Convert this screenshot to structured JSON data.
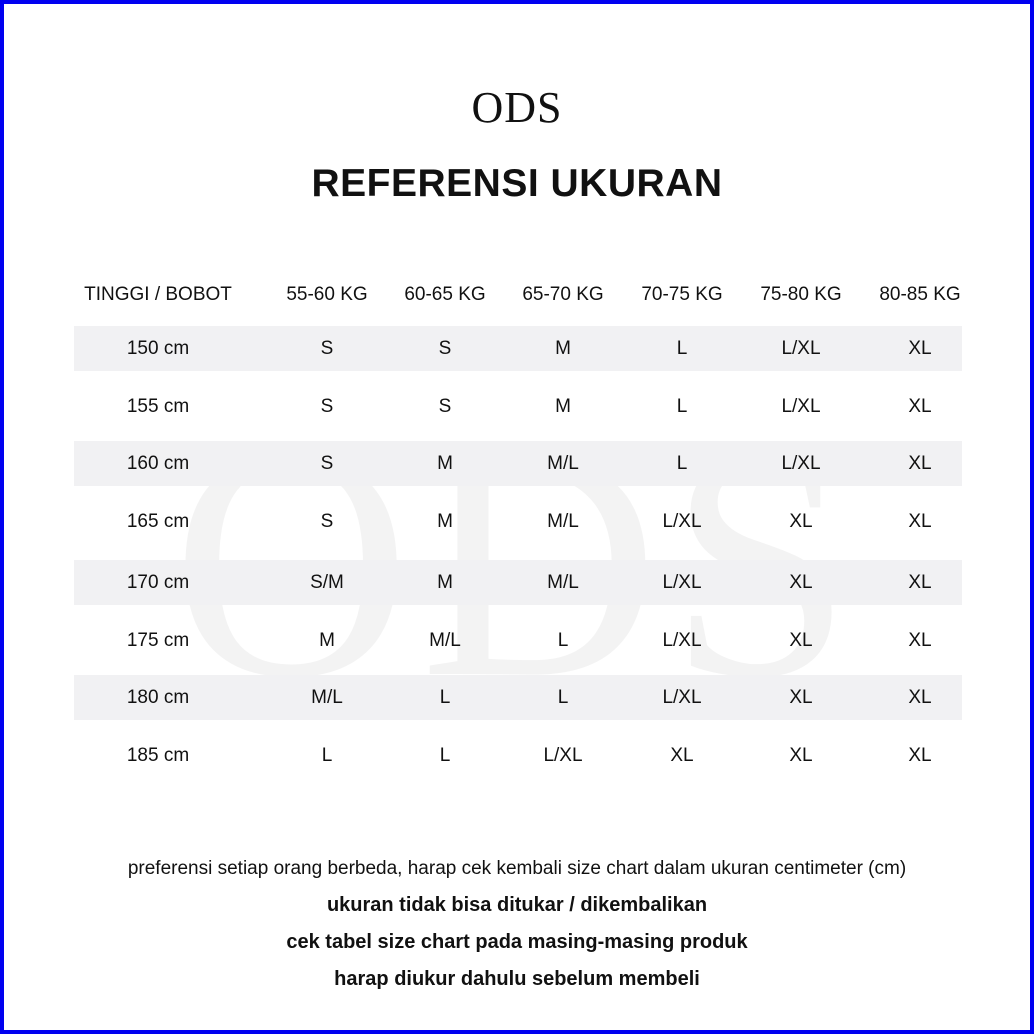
{
  "brand": "ODS",
  "title": "REFERENSI UKURAN",
  "watermark": "ODS",
  "table": {
    "headers": [
      "TINGGI / BOBOT",
      "55-60 KG",
      "60-65 KG",
      "65-70 KG",
      "70-75 KG",
      "75-80 KG",
      "80-85 KG"
    ],
    "rows": [
      [
        "150 cm",
        "S",
        "S",
        "M",
        "L",
        "L/XL",
        "XL"
      ],
      [
        "155 cm",
        "S",
        "S",
        "M",
        "L",
        "L/XL",
        "XL"
      ],
      [
        "160 cm",
        "S",
        "M",
        "M/L",
        "L",
        "L/XL",
        "XL"
      ],
      [
        "165 cm",
        "S",
        "M",
        "M/L",
        "L/XL",
        "XL",
        "XL"
      ],
      [
        "170 cm",
        "S/M",
        "M",
        "M/L",
        "L/XL",
        "XL",
        "XL"
      ],
      [
        "175 cm",
        "M",
        "M/L",
        "L",
        "L/XL",
        "XL",
        "XL"
      ],
      [
        "180 cm",
        "M/L",
        "L",
        "L",
        "L/XL",
        "XL",
        "XL"
      ],
      [
        "185 cm",
        "L",
        "L",
        "L/XL",
        "XL",
        "XL",
        "XL"
      ]
    ]
  },
  "notes": [
    "preferensi setiap orang berbeda, harap cek kembali size chart dalam ukuran centimeter (cm)",
    "ukuran tidak bisa ditukar / dikembalikan",
    "cek tabel size chart pada masing-masing produk",
    "harap diukur dahulu sebelum membeli"
  ],
  "colors": {
    "border": "#0000f0",
    "stripe": "#f1f1f3"
  }
}
